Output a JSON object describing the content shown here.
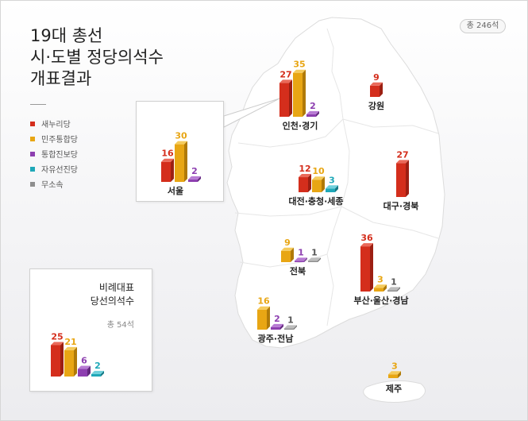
{
  "title_lines": [
    "19대 총선",
    "시·도별 정당의석수",
    "개표결과"
  ],
  "total": "총 246석",
  "parties": [
    {
      "name": "새누리당",
      "color": "#d42e1c",
      "side": "#9c1f12",
      "top": "#ea6a5a"
    },
    {
      "name": "민주통합당",
      "color": "#e8a614",
      "side": "#b07a08",
      "top": "#f5cb5c"
    },
    {
      "name": "통합진보당",
      "color": "#8d3fb0",
      "side": "#62287d",
      "top": "#b77ad3"
    },
    {
      "name": "자유선진당",
      "color": "#1fa8b8",
      "side": "#137885",
      "top": "#6fd0db"
    },
    {
      "name": "무소속",
      "color": "#8e8e8e",
      "side": "#666666",
      "top": "#bdbdbd"
    }
  ],
  "proportional": {
    "title_line1": "비례대표",
    "title_line2": "당선의석수",
    "sub": "총 54석"
  },
  "chart_data": {
    "type": "bar",
    "title": "19대 총선 시·도별 정당의석수 개표결과",
    "legend": [
      "새누리당",
      "민주통합당",
      "통합진보당",
      "자유선진당",
      "무소속"
    ],
    "legend_placement": "left",
    "regions": [
      {
        "name": "서울",
        "values": [
          {
            "party": 0,
            "value": 16
          },
          {
            "party": 1,
            "value": 30
          },
          {
            "party": 2,
            "value": 2
          }
        ]
      },
      {
        "name": "인천·경기",
        "values": [
          {
            "party": 0,
            "value": 27
          },
          {
            "party": 1,
            "value": 35
          },
          {
            "party": 2,
            "value": 2
          }
        ]
      },
      {
        "name": "강원",
        "values": [
          {
            "party": 0,
            "value": 9
          }
        ]
      },
      {
        "name": "대전·충청·세종",
        "values": [
          {
            "party": 0,
            "value": 12
          },
          {
            "party": 1,
            "value": 10
          },
          {
            "party": 3,
            "value": 3
          }
        ]
      },
      {
        "name": "대구·경북",
        "values": [
          {
            "party": 0,
            "value": 27
          }
        ]
      },
      {
        "name": "전북",
        "values": [
          {
            "party": 1,
            "value": 9
          },
          {
            "party": 2,
            "value": 1
          },
          {
            "party": 4,
            "value": 1
          }
        ]
      },
      {
        "name": "부산·울산·경남",
        "values": [
          {
            "party": 0,
            "value": 36
          },
          {
            "party": 1,
            "value": 3
          },
          {
            "party": 4,
            "value": 1
          }
        ]
      },
      {
        "name": "광주·전남",
        "values": [
          {
            "party": 1,
            "value": 16
          },
          {
            "party": 2,
            "value": 2
          },
          {
            "party": 4,
            "value": 1
          }
        ]
      },
      {
        "name": "제주",
        "values": [
          {
            "party": 1,
            "value": 3
          }
        ]
      },
      {
        "name": "비례대표",
        "values": [
          {
            "party": 0,
            "value": 25
          },
          {
            "party": 1,
            "value": 21
          },
          {
            "party": 2,
            "value": 6
          },
          {
            "party": 3,
            "value": 2
          }
        ]
      }
    ]
  }
}
